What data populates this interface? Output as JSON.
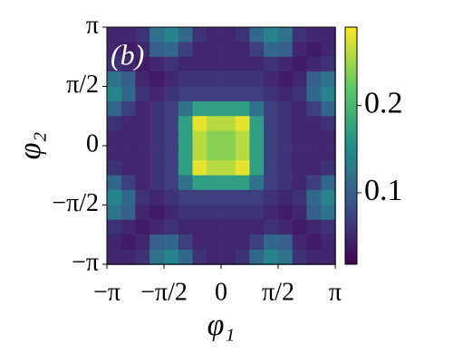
{
  "chart_data": {
    "type": "heatmap",
    "annotation": "(b)",
    "xlabel": "φ₁",
    "ylabel": "φ₂",
    "colormap": "viridis",
    "xlim": [
      -3.1416,
      3.1416
    ],
    "ylim": [
      -3.1416,
      3.1416
    ],
    "xticks": [
      {
        "value": -3.1416,
        "label": "−π"
      },
      {
        "value": -1.5708,
        "label": "−π/2"
      },
      0,
      {
        "value": 1.5708,
        "label": "π/2"
      },
      {
        "value": 3.1416,
        "label": "π"
      }
    ],
    "yticks": [
      {
        "value": -3.1416,
        "label": "−π"
      },
      {
        "value": -1.5708,
        "label": "−π/2"
      },
      0,
      {
        "value": 1.5708,
        "label": "π/2"
      },
      {
        "value": 3.1416,
        "label": "π"
      }
    ],
    "x": [
      -2.95,
      -2.55,
      -2.16,
      -1.77,
      -1.37,
      -0.98,
      -0.59,
      -0.2,
      0.2,
      0.59,
      0.98,
      1.37,
      1.77,
      2.16,
      2.55,
      2.95
    ],
    "y": [
      2.95,
      2.55,
      2.16,
      1.77,
      1.37,
      0.98,
      0.59,
      0.2,
      -0.2,
      -0.59,
      -0.98,
      -1.37,
      -1.77,
      -2.16,
      -2.55,
      -2.95
    ],
    "z": [
      [
        0.05,
        0.05,
        0.06,
        0.12,
        0.14,
        0.11,
        0.06,
        0.05,
        0.05,
        0.06,
        0.11,
        0.14,
        0.12,
        0.06,
        0.05,
        0.05
      ],
      [
        0.05,
        0.04,
        0.05,
        0.1,
        0.11,
        0.07,
        0.05,
        0.05,
        0.05,
        0.05,
        0.07,
        0.11,
        0.1,
        0.05,
        0.04,
        0.05
      ],
      [
        0.06,
        0.05,
        0.04,
        0.05,
        0.06,
        0.05,
        0.05,
        0.05,
        0.05,
        0.05,
        0.05,
        0.06,
        0.05,
        0.04,
        0.05,
        0.06
      ],
      [
        0.12,
        0.1,
        0.05,
        0.04,
        0.05,
        0.06,
        0.06,
        0.06,
        0.06,
        0.06,
        0.06,
        0.05,
        0.04,
        0.05,
        0.1,
        0.12
      ],
      [
        0.14,
        0.11,
        0.06,
        0.05,
        0.06,
        0.07,
        0.07,
        0.07,
        0.07,
        0.07,
        0.07,
        0.06,
        0.05,
        0.06,
        0.11,
        0.14
      ],
      [
        0.11,
        0.07,
        0.05,
        0.06,
        0.07,
        0.12,
        0.17,
        0.17,
        0.17,
        0.17,
        0.12,
        0.07,
        0.06,
        0.05,
        0.07,
        0.11
      ],
      [
        0.06,
        0.05,
        0.05,
        0.06,
        0.07,
        0.17,
        0.28,
        0.26,
        0.26,
        0.28,
        0.17,
        0.07,
        0.06,
        0.05,
        0.05,
        0.06
      ],
      [
        0.05,
        0.05,
        0.05,
        0.06,
        0.07,
        0.17,
        0.26,
        0.24,
        0.24,
        0.26,
        0.17,
        0.07,
        0.06,
        0.05,
        0.05,
        0.05
      ],
      [
        0.05,
        0.05,
        0.05,
        0.06,
        0.07,
        0.17,
        0.26,
        0.24,
        0.24,
        0.26,
        0.17,
        0.07,
        0.06,
        0.05,
        0.05,
        0.05
      ],
      [
        0.06,
        0.05,
        0.05,
        0.06,
        0.07,
        0.17,
        0.28,
        0.26,
        0.26,
        0.28,
        0.17,
        0.07,
        0.06,
        0.05,
        0.05,
        0.06
      ],
      [
        0.11,
        0.07,
        0.05,
        0.06,
        0.07,
        0.12,
        0.17,
        0.17,
        0.17,
        0.17,
        0.12,
        0.07,
        0.06,
        0.05,
        0.07,
        0.11
      ],
      [
        0.14,
        0.11,
        0.06,
        0.05,
        0.06,
        0.07,
        0.07,
        0.07,
        0.07,
        0.07,
        0.07,
        0.06,
        0.05,
        0.06,
        0.11,
        0.14
      ],
      [
        0.12,
        0.1,
        0.05,
        0.04,
        0.05,
        0.06,
        0.06,
        0.06,
        0.06,
        0.06,
        0.06,
        0.05,
        0.04,
        0.05,
        0.1,
        0.12
      ],
      [
        0.06,
        0.05,
        0.04,
        0.05,
        0.06,
        0.05,
        0.05,
        0.05,
        0.05,
        0.05,
        0.05,
        0.06,
        0.05,
        0.04,
        0.05,
        0.06
      ],
      [
        0.05,
        0.04,
        0.05,
        0.1,
        0.11,
        0.07,
        0.05,
        0.05,
        0.05,
        0.05,
        0.07,
        0.11,
        0.1,
        0.05,
        0.04,
        0.05
      ],
      [
        0.05,
        0.05,
        0.06,
        0.12,
        0.14,
        0.11,
        0.06,
        0.05,
        0.05,
        0.06,
        0.11,
        0.14,
        0.12,
        0.06,
        0.05,
        0.05
      ]
    ],
    "clim": [
      0.018,
      0.29
    ],
    "cticks": [
      0.1,
      0.2
    ]
  }
}
